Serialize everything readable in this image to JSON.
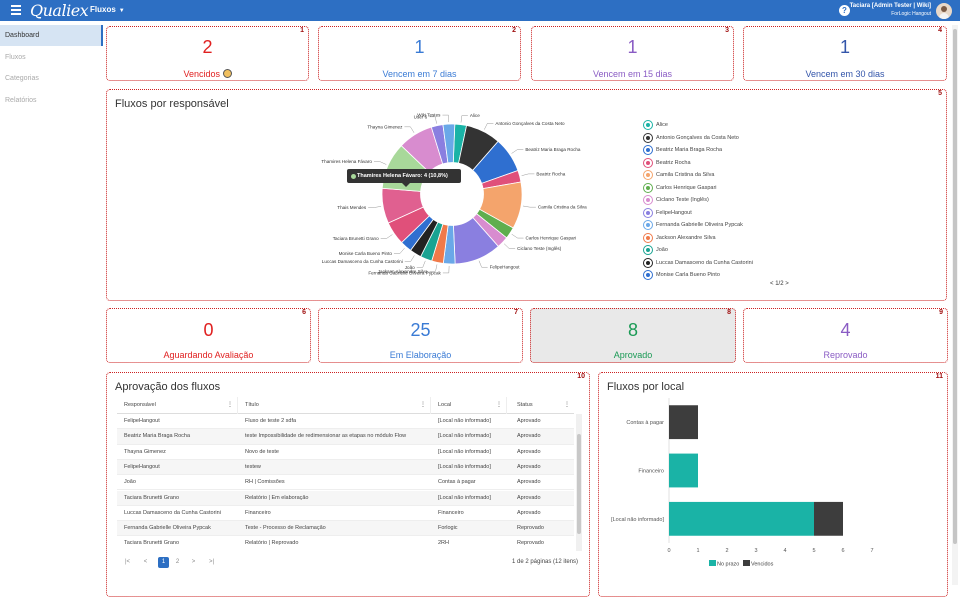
{
  "header": {
    "logo": "Qualiex",
    "module": "Fluxos",
    "user_name": "Taciara [Admin Tester | Wiki]",
    "user_company": "ForLogic Hangout",
    "help_label": "?"
  },
  "sidebar": {
    "items": [
      {
        "label": "Dashboard",
        "active": true
      },
      {
        "label": "Fluxos",
        "active": false
      },
      {
        "label": "Categorias",
        "active": false
      },
      {
        "label": "Relatórios",
        "active": false
      }
    ]
  },
  "kpis_top": [
    {
      "num": "1",
      "value": "2",
      "label": "Vencidos",
      "color": "#e02020"
    },
    {
      "num": "2",
      "value": "1",
      "label": "Vencem em 7 dias",
      "color": "#3a7bd5"
    },
    {
      "num": "3",
      "value": "1",
      "label": "Vencem em 15 dias",
      "color": "#8a5cc4"
    },
    {
      "num": "4",
      "value": "1",
      "label": "Vencem em 30 dias",
      "color": "#3355aa"
    }
  ],
  "kpis_bottom": [
    {
      "num": "6",
      "value": "0",
      "label": "Aguardando Avaliação",
      "color": "#e02020"
    },
    {
      "num": "7",
      "value": "25",
      "label": "Em Elaboração",
      "color": "#3a7bd5"
    },
    {
      "num": "8",
      "value": "8",
      "label": "Aprovado",
      "color": "#1a9a55"
    },
    {
      "num": "9",
      "value": "4",
      "label": "Reprovado",
      "color": "#8a5cc4"
    }
  ],
  "responsaveis": {
    "num": "5",
    "title": "Fluxos por responsável",
    "tooltip": "Thamires Helena Fávaro: 4 (10,8%)",
    "legend_pager": "1/2",
    "legend": [
      {
        "label": "Alice",
        "color": "#1ab3a6"
      },
      {
        "label": "Antonio Gonçalves da Costa Neto",
        "color": "#333333"
      },
      {
        "label": "Beatriz Maria Braga Rocha",
        "color": "#2f6fd0"
      },
      {
        "label": "Beatriz Rocha",
        "color": "#e0507a"
      },
      {
        "label": "Camila Cristina da Silva",
        "color": "#f4a46c"
      },
      {
        "label": "Carlos Henrique Gaspari",
        "color": "#5fae4e"
      },
      {
        "label": "Ciclano Teste (Inglês)",
        "color": "#d88ccf"
      },
      {
        "label": "FelipeHangout",
        "color": "#8a7fe0"
      },
      {
        "label": "Fernanda Gabrielle Oliveira Pypcak",
        "color": "#6aa8e8"
      },
      {
        "label": "Jackson Alexandre Silva",
        "color": "#f07a4a"
      },
      {
        "label": "João",
        "color": "#1aa392"
      },
      {
        "label": "Luccas Damasceno da Cunha Castorini",
        "color": "#222222"
      },
      {
        "label": "Monise Carla Bueno Pinto",
        "color": "#2f6fd0"
      }
    ]
  },
  "chart_data": [
    {
      "type": "pie",
      "title": "Fluxos por responsável",
      "categories": [
        "Alice",
        "Antonio Gonçalves da Costa Neto",
        "Beatriz Maria Braga Rocha",
        "Beatriz Rocha",
        "Camila Cristina da Silva",
        "Carlos Henrique Gaspari",
        "Ciclano Teste (Inglês)",
        "FelipeHangout",
        "Fernanda Gabrielle Oliveira Pypcak",
        "Jackson Alexandre Silva",
        "João",
        "Luccas Damasceno da Cunha Castorini",
        "Monise Carla Bueno Pinto",
        "Taciara Brunetti Grano",
        "Thais Mendes",
        "Thamires Helena Fávaro",
        "Thayna Gimenez",
        "User 6",
        "Wiki Testes"
      ],
      "values": [
        1,
        3,
        3,
        1,
        4,
        1,
        1,
        4,
        1,
        1,
        1,
        1,
        1,
        2,
        3,
        4,
        3,
        1,
        1
      ],
      "colors": [
        "#1ab3a6",
        "#333333",
        "#2f6fd0",
        "#e0507a",
        "#f4a46c",
        "#5fae4e",
        "#d88ccf",
        "#8a7fe0",
        "#6aa8e8",
        "#f07a4a",
        "#1aa392",
        "#222222",
        "#2f6fd0",
        "#e0507a",
        "#e06090",
        "#a8d89a",
        "#d88ccf",
        "#8a7fe0",
        "#6aa8e8"
      ],
      "inner_radius_ratio": 0.45
    },
    {
      "type": "bar",
      "orientation": "horizontal",
      "stacked": true,
      "title": "Fluxos por local",
      "categories": [
        "Contas à pagar",
        "Financeiro",
        "[Local não informado]"
      ],
      "series": [
        {
          "name": "No prazo",
          "values": [
            0,
            1,
            5
          ],
          "color": "#1ab3a6"
        },
        {
          "name": "Vencidos",
          "values": [
            1,
            0,
            1
          ],
          "color": "#3d3d3d"
        }
      ],
      "xlim": [
        0,
        7
      ],
      "xticks": [
        "0",
        "1",
        "2",
        "3",
        "4",
        "5",
        "6",
        "7"
      ]
    }
  ],
  "aprovacao": {
    "num": "10",
    "title": "Aprovação dos fluxos",
    "columns": [
      "Responsável",
      "Título",
      "Local",
      "Status"
    ],
    "rows": [
      [
        "FelipeHangout",
        "Fluxo de teste 2 sdfa",
        "[Local não informado]",
        "Aprovado"
      ],
      [
        "Beatriz Maria Braga Rocha",
        "teste Impossibilidade de redimensionar as etapas no módulo Flow",
        "[Local não informado]",
        "Aprovado"
      ],
      [
        "Thayna Gimenez",
        "Novo de teste",
        "[Local não informado]",
        "Aprovado"
      ],
      [
        "FelipeHangout",
        "testew",
        "[Local não informado]",
        "Aprovado"
      ],
      [
        "João",
        "RH | Comissões",
        "Contas à pagar",
        "Aprovado"
      ],
      [
        "Taciara Brunetti Grano",
        "Relatório | Em elaboração",
        "[Local não informado]",
        "Aprovado"
      ],
      [
        "Luccas Damasceno da Cunha Castorini",
        "Financeiro",
        "Financeiro",
        "Aprovado"
      ],
      [
        "Fernanda Gabrielle Oliveira Pypcak",
        "Teste - Processo de Reclamação",
        "Forlogic",
        "Reprovado"
      ],
      [
        "Taciara Brunetti Grano",
        "Relatório | Reprovado",
        "2RH",
        "Reprovado"
      ]
    ],
    "pages": [
      "1",
      "2"
    ],
    "pager_info": "1 de 2 páginas (12 itens)"
  },
  "local": {
    "num": "11",
    "title": "Fluxos por local"
  }
}
